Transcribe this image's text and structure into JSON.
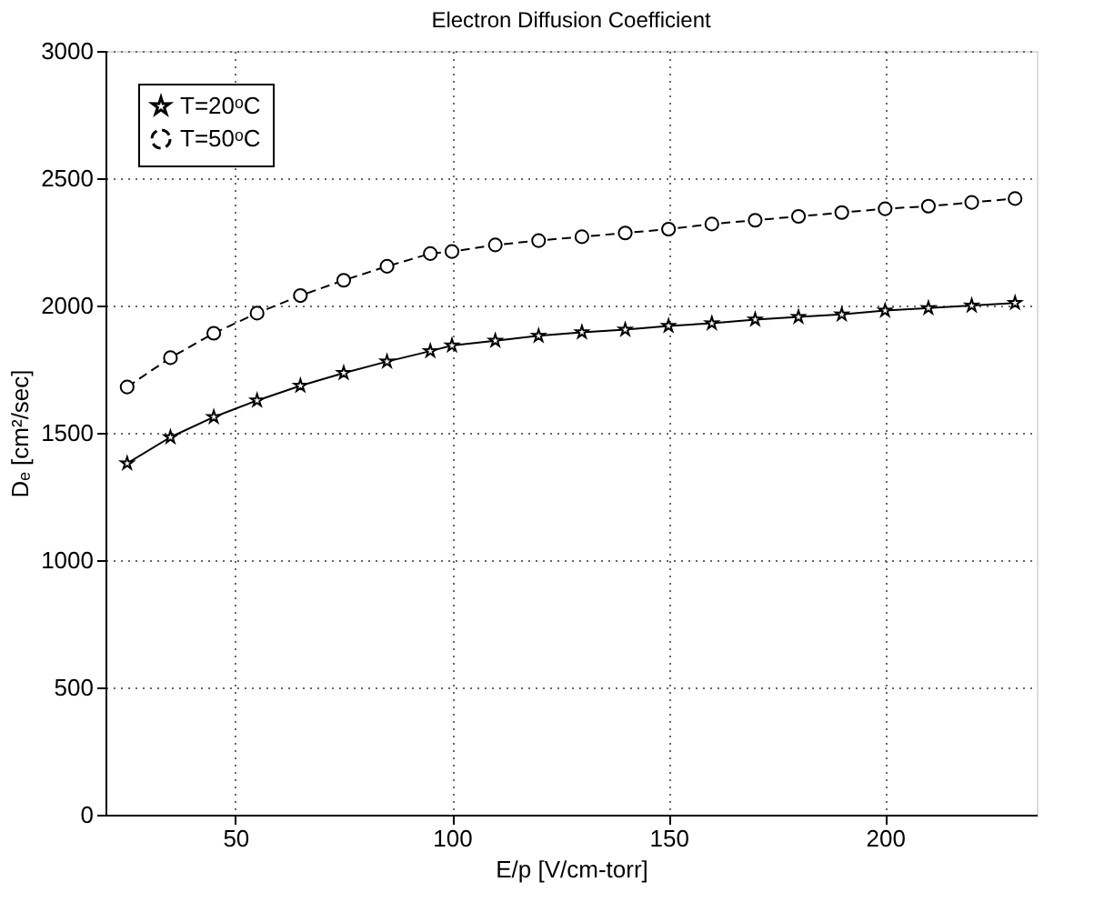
{
  "chart_data": {
    "type": "line",
    "title": "Electron Diffusion Coefficient",
    "xlabel": "E/p [V/cm-torr]",
    "ylabel": "Dₑ [cm²/sec]",
    "x": [
      25,
      35,
      45,
      55,
      65,
      75,
      85,
      95,
      100,
      110,
      120,
      130,
      140,
      150,
      160,
      170,
      180,
      190,
      200,
      210,
      220,
      230
    ],
    "series": [
      {
        "name": "T=20ᵒC",
        "color": "#000000",
        "marker": "star",
        "line_style": "solid",
        "values": [
          1380,
          1483,
          1562,
          1627,
          1685,
          1735,
          1780,
          1821,
          1843,
          1862,
          1881,
          1895,
          1905,
          1920,
          1930,
          1945,
          1955,
          1965,
          1980,
          1990,
          2000,
          2010
        ]
      },
      {
        "name": "T=50ᵒC",
        "color": "#000000",
        "marker": "circle",
        "line_style": "dashed",
        "values": [
          1680,
          1795,
          1891,
          1970,
          2039,
          2099,
          2154,
          2204,
          2212,
          2238,
          2255,
          2270,
          2285,
          2300,
          2320,
          2335,
          2350,
          2365,
          2380,
          2390,
          2405,
          2420
        ]
      }
    ],
    "xlim": [
      20,
      235
    ],
    "xticks": [
      50,
      100,
      150,
      200
    ],
    "ylim": [
      0,
      3000
    ],
    "yticks": [
      0,
      500,
      1000,
      1500,
      2000,
      2500,
      3000
    ],
    "grid": true,
    "legend": "top left"
  }
}
